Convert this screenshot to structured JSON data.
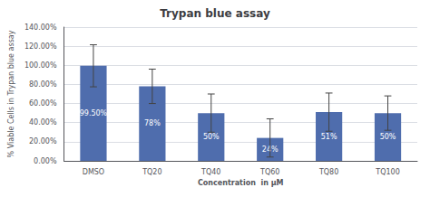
{
  "chart_data": {
    "type": "bar",
    "title": "Trypan blue assay",
    "xlabel": "Concentration  in μM",
    "ylabel": "% Viable Cells in Trypan blue assay",
    "categories": [
      "DMSO",
      "TQ20",
      "TQ40",
      "TQ60",
      "TQ80",
      "TQ100"
    ],
    "values": [
      99.5,
      78,
      50,
      24,
      51,
      50
    ],
    "value_labels": [
      "99.50%",
      "78%",
      "50%",
      "24%",
      "51%",
      "50%"
    ],
    "errors": [
      22,
      18,
      20,
      20,
      20,
      18
    ],
    "color": "#4F6DAD",
    "ylim": [
      0,
      140
    ],
    "yticks": [
      {
        "value": 0,
        "label": "0.00%"
      },
      {
        "value": 20,
        "label": "20.00%"
      },
      {
        "value": 40,
        "label": "40.00%"
      },
      {
        "value": 60,
        "label": "60.00%"
      },
      {
        "value": 80,
        "label": "80.00%"
      },
      {
        "value": 100,
        "label": "100.00%"
      },
      {
        "value": 120,
        "label": "120.00%"
      },
      {
        "value": 140,
        "label": "140.00%"
      }
    ],
    "grid": true,
    "data_labels": true
  }
}
